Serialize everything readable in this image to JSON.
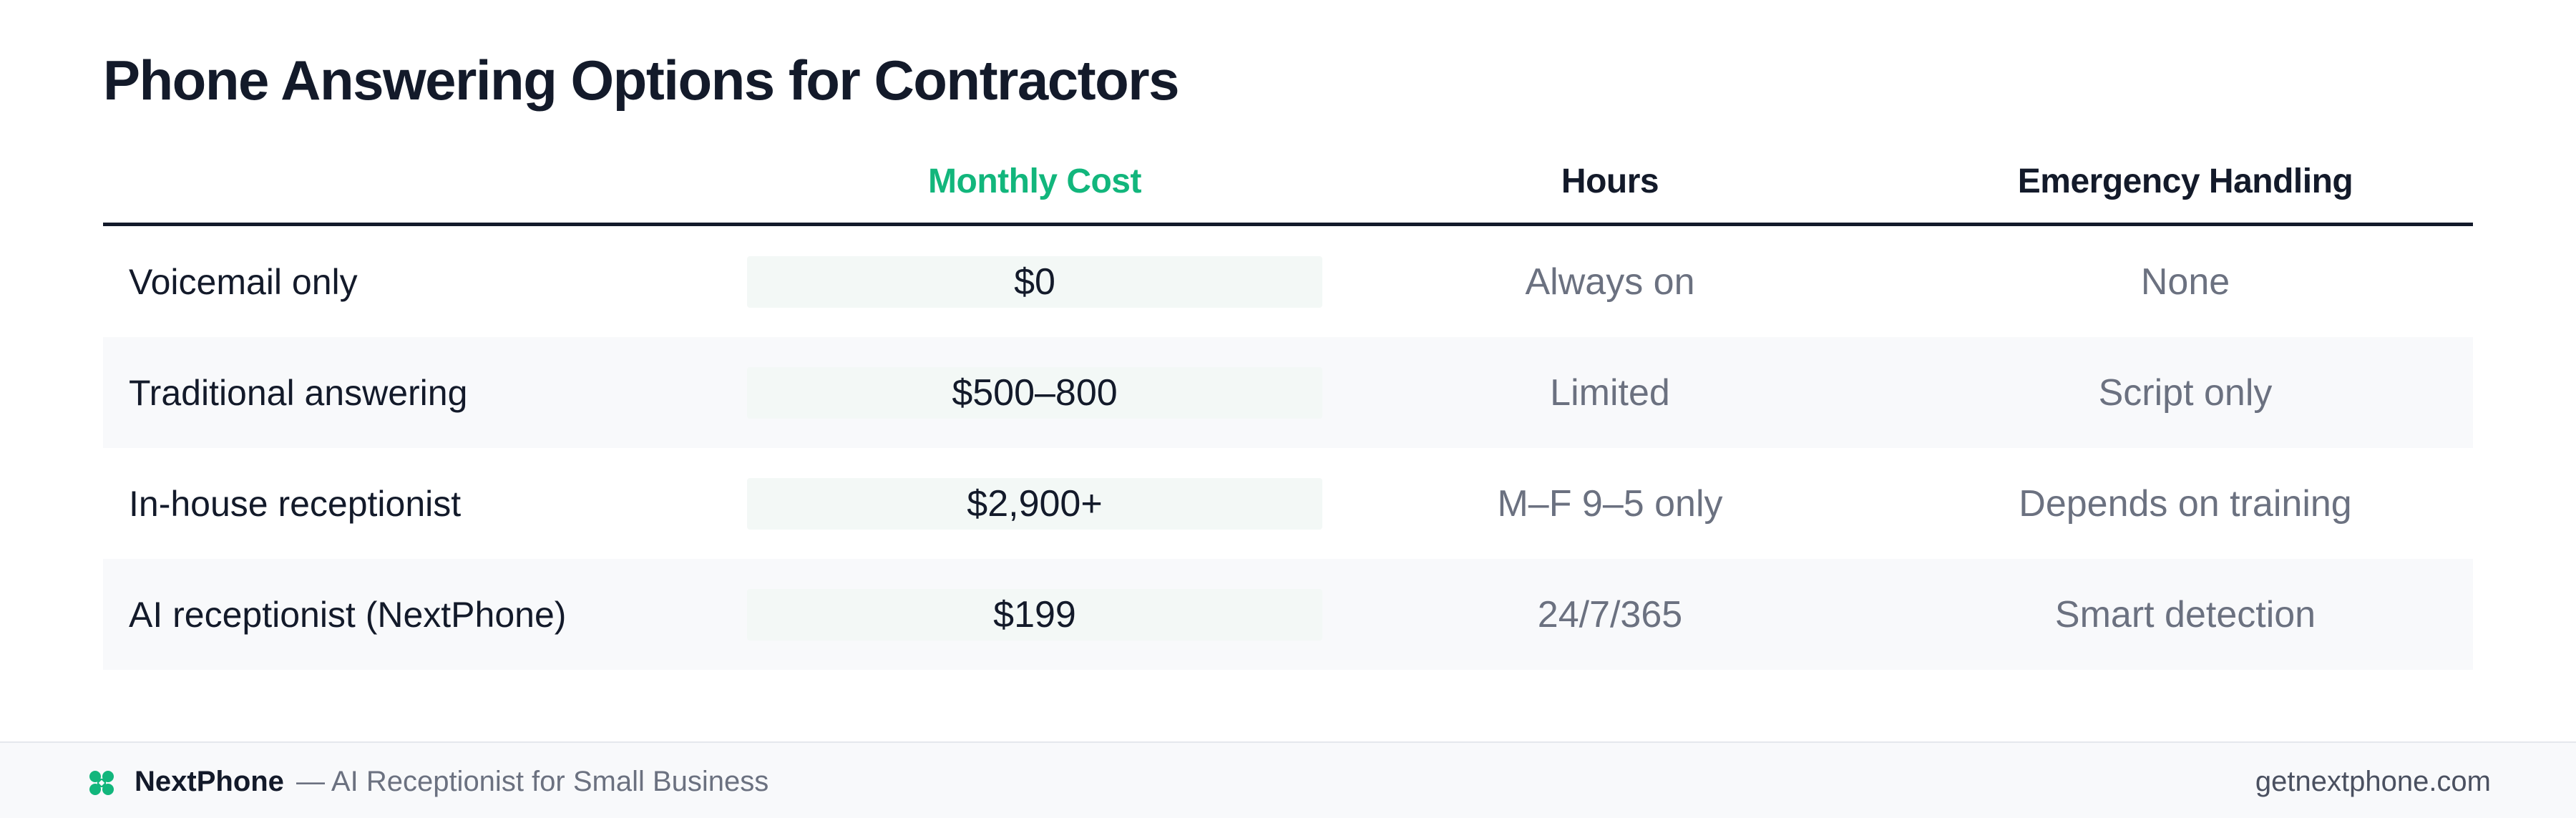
{
  "title": "Phone Answering Options for Contractors",
  "table": {
    "headers": {
      "option": "",
      "cost": "Monthly Cost",
      "hours": "Hours",
      "emergency": "Emergency Handling"
    },
    "rows": [
      {
        "option": "Voicemail only",
        "cost": "$0",
        "hours": "Always on",
        "emergency": "None"
      },
      {
        "option": "Traditional answering",
        "cost": "$500–800",
        "hours": "Limited",
        "emergency": "Script only"
      },
      {
        "option": "In-house receptionist",
        "cost": "$2,900+",
        "hours": "M–F 9–5 only",
        "emergency": "Depends on training"
      },
      {
        "option": "AI receptionist (NextPhone)",
        "cost": "$199",
        "hours": "24/7/365",
        "emergency": "Smart detection"
      }
    ]
  },
  "footer": {
    "logo_icon": "nextphone-logo-icon",
    "brand": "NextPhone",
    "tagline": "— AI Receptionist for Small Business",
    "url": "getnextphone.com"
  },
  "colors": {
    "accent": "#12b67c",
    "text": "#131a2a",
    "muted": "#6b7180",
    "row_alt_bg": "#f8f9fb",
    "cost_cell_bg": "#f3f8f6"
  }
}
